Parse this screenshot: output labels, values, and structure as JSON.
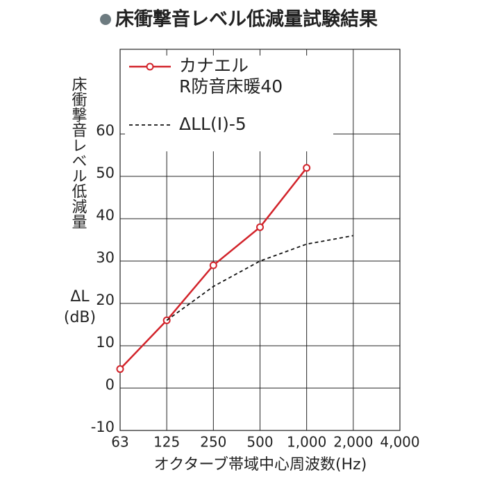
{
  "chart_data": {
    "type": "line",
    "title": "床衝撃音レベル低減量試験結果",
    "y_label": "床衝撃音レベル低減量",
    "y_label_symbol": "ΔL",
    "y_label_unit": "(dB)",
    "x_label": "オクターブ帯域中心周波数(Hz)",
    "categories": [
      "63",
      "125",
      "250",
      "500",
      "1,000",
      "2,000",
      "4,000"
    ],
    "series": [
      {
        "name": "カナエル\nR防音床暖40",
        "color": "#d2232a",
        "style": "solid",
        "marker": "circle",
        "values": [
          4.5,
          16,
          29,
          38,
          52,
          null,
          null
        ]
      },
      {
        "name": "ΔLL(Ⅰ)-5",
        "color": "#111111",
        "style": "dashed",
        "marker": "none",
        "values": [
          null,
          16,
          24,
          30,
          34,
          36,
          null
        ]
      }
    ],
    "ylim": [
      -10,
      80
    ],
    "yticks": [
      -10,
      0,
      10,
      20,
      30,
      40,
      50,
      60
    ],
    "grid": true,
    "legend": "top-left"
  }
}
